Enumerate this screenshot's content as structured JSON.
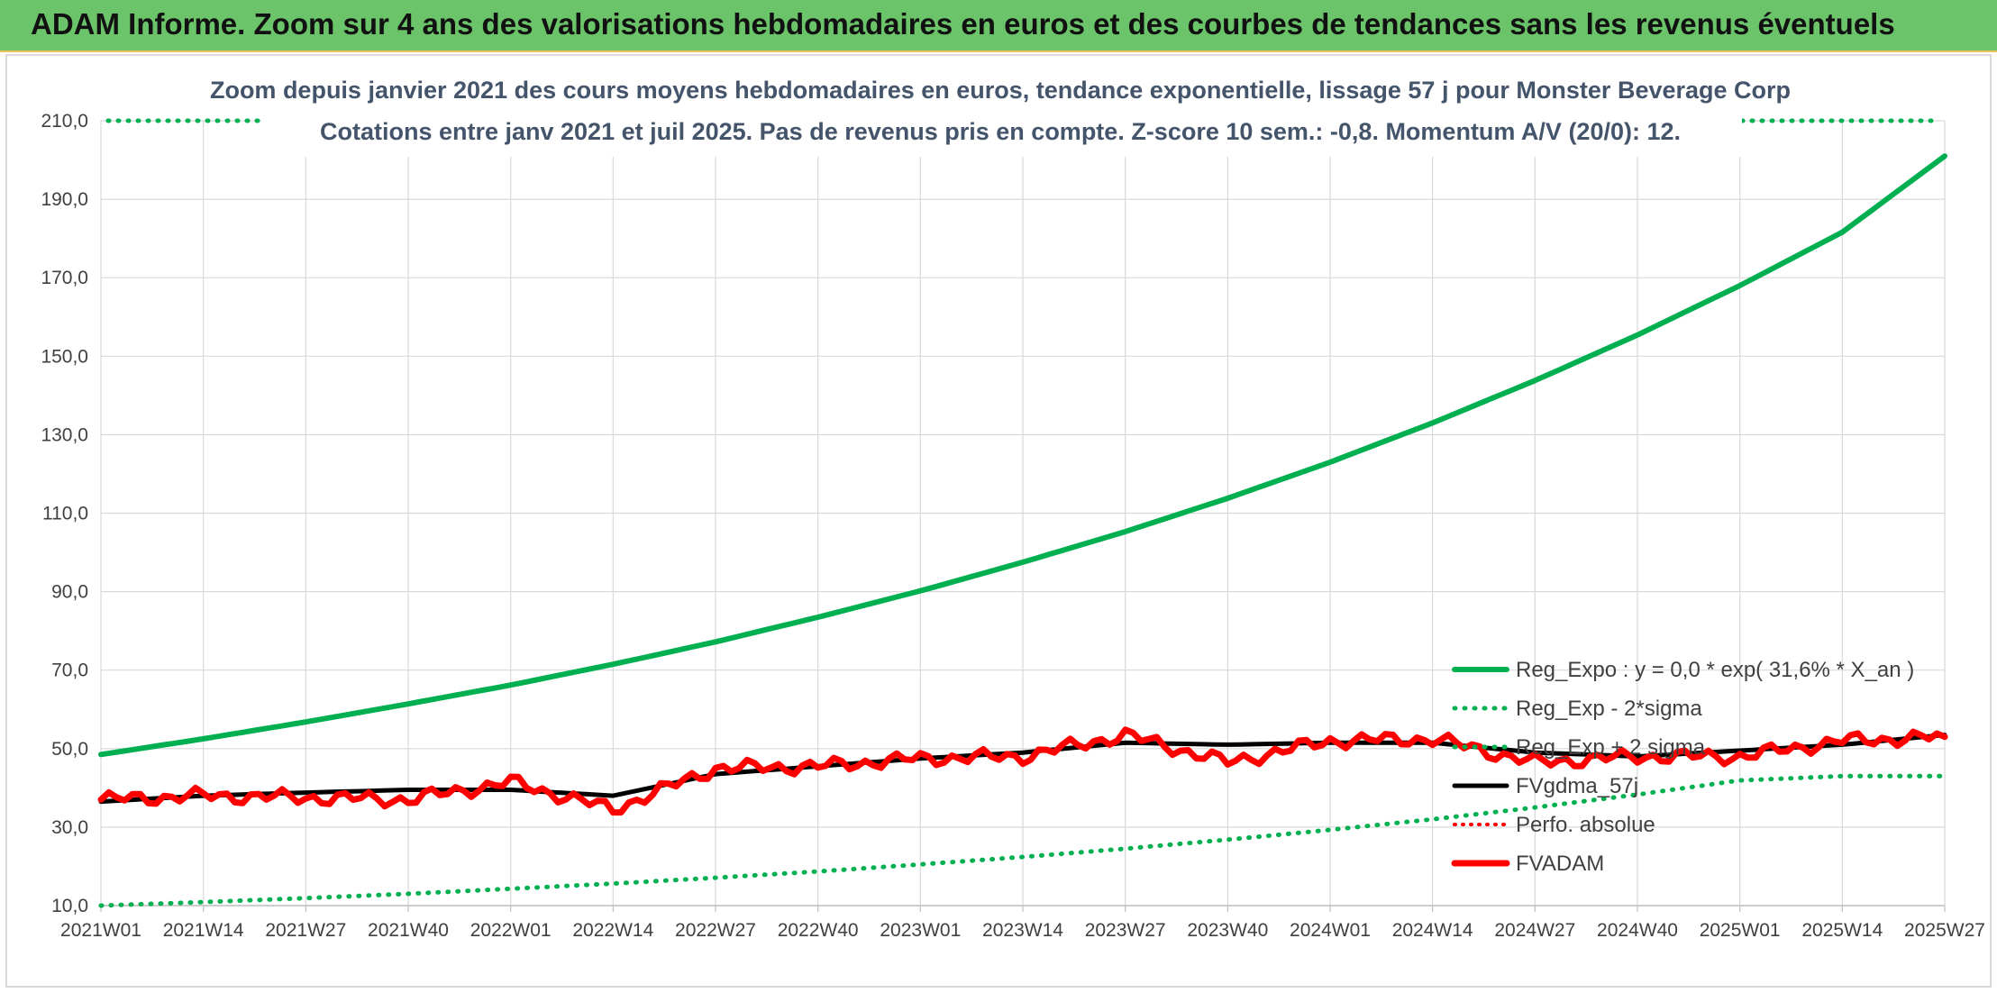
{
  "banner": {
    "title": "ADAM Informe. Zoom sur 4 ans des valorisations hebdomadaires en euros et des courbes de tendances sans les revenus éventuels"
  },
  "colors": {
    "banner_bg": "#6cc46a",
    "reg_expo": "#00b050",
    "fvgdma": "#000000",
    "fvadam": "#ff0000",
    "grid": "#d9d9d9",
    "subtitle": "#44546a"
  },
  "chart_data": {
    "type": "line",
    "title_line1": "Zoom depuis janvier 2021 des cours moyens hebdomadaires en euros, tendance exponentielle, lissage 57 j pour Monster Beverage Corp",
    "title_line2": "Cotations entre janv 2021 et juil 2025. Pas de revenus pris en compte. Z-score 10 sem.: -0,8. Momentum A/V (20/0): 12.",
    "xlabel": "",
    "ylabel": "",
    "ylim": [
      10,
      210
    ],
    "yticks": [
      "10,0",
      "30,0",
      "50,0",
      "70,0",
      "90,0",
      "110,0",
      "130,0",
      "150,0",
      "170,0",
      "190,0",
      "210,0"
    ],
    "x_categories": [
      "2021W01",
      "2021W14",
      "2021W27",
      "2021W40",
      "2022W01",
      "2022W14",
      "2022W27",
      "2022W40",
      "2023W01",
      "2023W14",
      "2023W27",
      "2023W40",
      "2024W01",
      "2024W14",
      "2024W27",
      "2024W40",
      "2025W01",
      "2025W14",
      "2025W27"
    ],
    "grid": true,
    "legend_position": "bottom-right",
    "series": [
      {
        "name": "Reg_Expo : y = 0,0 * exp( 31,6% *  X_an )",
        "style": "solid-green",
        "values": [
          48.5,
          52.5,
          56.8,
          61.4,
          66.2,
          71.5,
          77.2,
          83.5,
          90.2,
          97.5,
          105.3,
          113.8,
          123.0,
          133.0,
          143.8,
          155.4,
          168.0,
          181.6,
          201.0
        ]
      },
      {
        "name": "Reg_Exp - 2*sigma",
        "style": "dotted-green",
        "values": [
          10.0,
          10.9,
          11.9,
          13.0,
          14.3,
          15.6,
          17.1,
          18.7,
          20.5,
          22.4,
          24.5,
          26.8,
          29.3,
          32.0,
          35.0,
          38.3,
          41.9,
          43.0,
          43.0
        ]
      },
      {
        "name": "Reg_Exp + 2 sigma",
        "style": "dotted-green-offchart",
        "values": []
      },
      {
        "name": "FVgdma_57j",
        "style": "solid-black",
        "values": [
          36.5,
          38.0,
          38.8,
          39.5,
          39.5,
          38.0,
          43.5,
          45.5,
          47.5,
          49.0,
          51.5,
          51.0,
          51.5,
          51.5,
          49.0,
          48.0,
          49.5,
          51.0,
          53.5
        ]
      },
      {
        "name": "Perfo. absolue",
        "style": "dotted-red",
        "values": []
      },
      {
        "name": "FVADAM",
        "style": "solid-red",
        "values": [
          37.0,
          38.0,
          37.5,
          37.0,
          41.5,
          34.5,
          45.0,
          45.5,
          47.5,
          48.0,
          53.5,
          46.5,
          52.0,
          52.5,
          46.5,
          48.0,
          48.0,
          52.0,
          53.0
        ]
      }
    ]
  }
}
